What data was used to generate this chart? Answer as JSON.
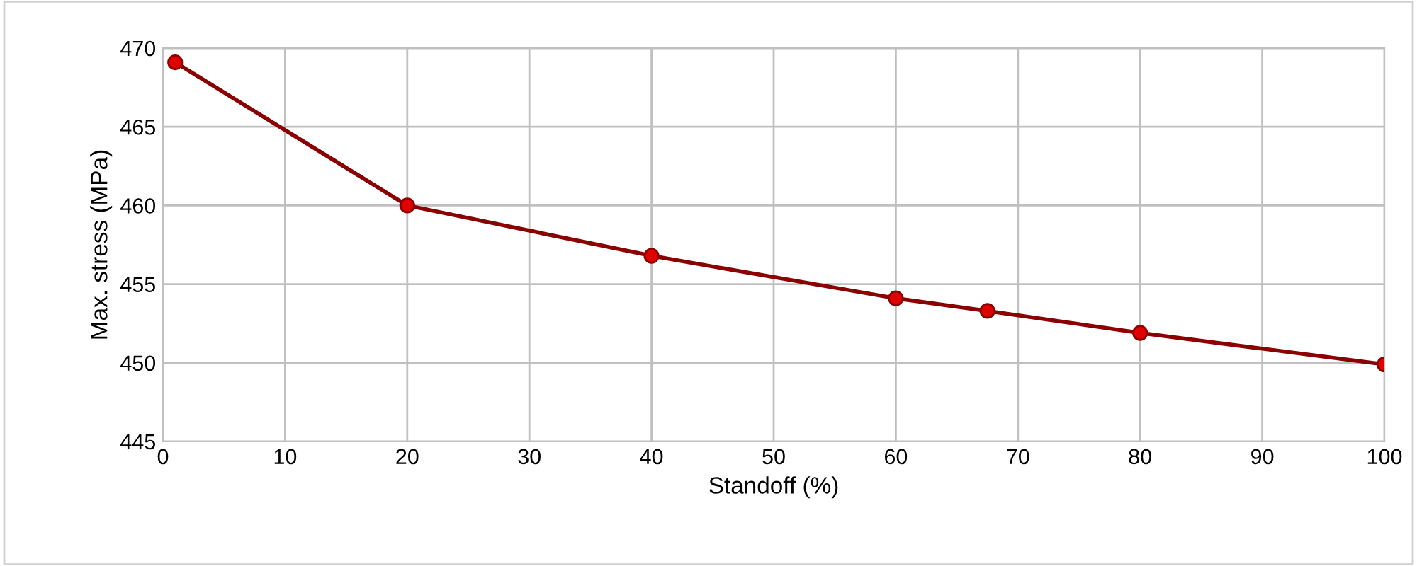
{
  "chart_data": {
    "type": "line",
    "xlabel": "Standoff (%)",
    "ylabel": "Max. stress (MPa)",
    "x": [
      1,
      20,
      40,
      60,
      67.5,
      80,
      100
    ],
    "series": [
      {
        "color": "#8b0000",
        "values": [
          469.1,
          460.0,
          456.8,
          454.1,
          453.3,
          451.9,
          449.9
        ]
      }
    ],
    "marker": "circle",
    "line_style": "solid",
    "grid": true,
    "xlim": [
      0,
      100
    ],
    "xticks": [
      0,
      10,
      20,
      30,
      40,
      50,
      60,
      70,
      80,
      90,
      100
    ],
    "ylim": [
      445,
      470
    ],
    "yticks": [
      445,
      450,
      455,
      460,
      465,
      470
    ]
  }
}
